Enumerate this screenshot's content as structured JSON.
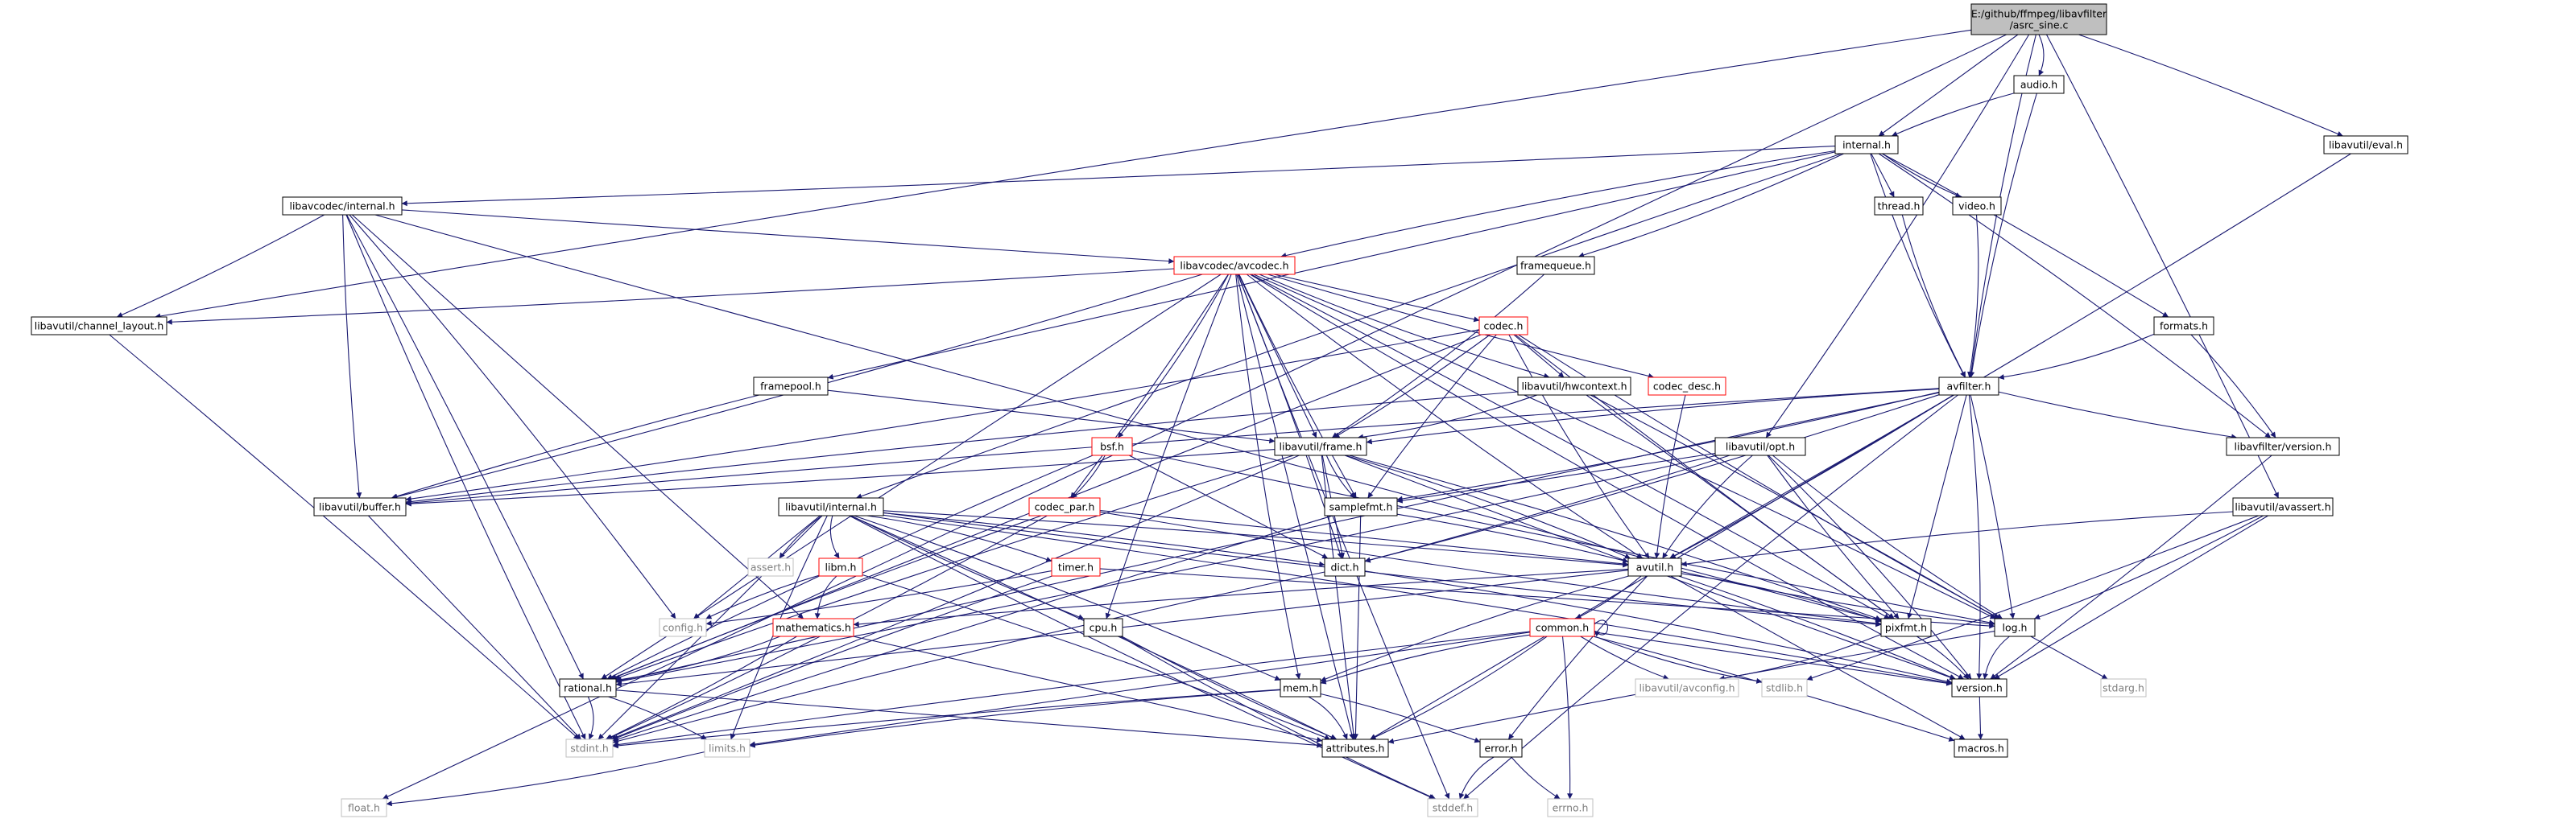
{
  "graph": {
    "title": "E:/github/ffmpeg/libavfilter/asrc_sine.c",
    "colors": {
      "edge": "#191970",
      "node_border": "#000000",
      "node_truncated_border": "#ff0000",
      "node_system_border": "#bfbfbf",
      "root_fill": "#bfbfbf",
      "node_fill": "#ffffff",
      "system_text": "#7f7f7f",
      "text": "#000000"
    },
    "nodes": [
      {
        "id": "root",
        "label": "E:/github/ffmpeg/libavfilter\n/asrc_sine.c",
        "kind": "root"
      },
      {
        "id": "audio",
        "label": "audio.h",
        "kind": "normal"
      },
      {
        "id": "eval",
        "label": "libavutil/eval.h",
        "kind": "normal"
      },
      {
        "id": "internal",
        "label": "internal.h",
        "kind": "normal"
      },
      {
        "id": "lacinternal",
        "label": "libavcodec/internal.h",
        "kind": "normal"
      },
      {
        "id": "thread",
        "label": "thread.h",
        "kind": "normal"
      },
      {
        "id": "video",
        "label": "video.h",
        "kind": "normal"
      },
      {
        "id": "avcodec",
        "label": "libavcodec/avcodec.h",
        "kind": "truncated"
      },
      {
        "id": "framequeue",
        "label": "framequeue.h",
        "kind": "normal"
      },
      {
        "id": "chlayout",
        "label": "libavutil/channel_layout.h",
        "kind": "normal"
      },
      {
        "id": "codec",
        "label": "codec.h",
        "kind": "truncated"
      },
      {
        "id": "formats",
        "label": "formats.h",
        "kind": "normal"
      },
      {
        "id": "framepool",
        "label": "framepool.h",
        "kind": "normal"
      },
      {
        "id": "hwcontext",
        "label": "libavutil/hwcontext.h",
        "kind": "normal"
      },
      {
        "id": "codecdesc",
        "label": "codec_desc.h",
        "kind": "truncated"
      },
      {
        "id": "avfilter",
        "label": "avfilter.h",
        "kind": "normal"
      },
      {
        "id": "bsf",
        "label": "bsf.h",
        "kind": "truncated"
      },
      {
        "id": "frame",
        "label": "libavutil/frame.h",
        "kind": "normal"
      },
      {
        "id": "opt",
        "label": "libavutil/opt.h",
        "kind": "normal"
      },
      {
        "id": "lfversion",
        "label": "libavfilter/version.h",
        "kind": "normal"
      },
      {
        "id": "buffer",
        "label": "libavutil/buffer.h",
        "kind": "normal"
      },
      {
        "id": "lauinternal",
        "label": "libavutil/internal.h",
        "kind": "normal"
      },
      {
        "id": "codecpar",
        "label": "codec_par.h",
        "kind": "truncated"
      },
      {
        "id": "samplefmt",
        "label": "samplefmt.h",
        "kind": "normal"
      },
      {
        "id": "avassert",
        "label": "libavutil/avassert.h",
        "kind": "normal"
      },
      {
        "id": "assert",
        "label": "assert.h",
        "kind": "system"
      },
      {
        "id": "libm",
        "label": "libm.h",
        "kind": "truncated"
      },
      {
        "id": "timer",
        "label": "timer.h",
        "kind": "truncated"
      },
      {
        "id": "dict",
        "label": "dict.h",
        "kind": "normal"
      },
      {
        "id": "avutil",
        "label": "avutil.h",
        "kind": "normal"
      },
      {
        "id": "config",
        "label": "config.h",
        "kind": "system"
      },
      {
        "id": "mathematics",
        "label": "mathematics.h",
        "kind": "truncated"
      },
      {
        "id": "cpu",
        "label": "cpu.h",
        "kind": "normal"
      },
      {
        "id": "pixfmt",
        "label": "pixfmt.h",
        "kind": "normal"
      },
      {
        "id": "log",
        "label": "log.h",
        "kind": "normal"
      },
      {
        "id": "common",
        "label": "common.h",
        "kind": "truncated"
      },
      {
        "id": "rational",
        "label": "rational.h",
        "kind": "normal"
      },
      {
        "id": "mem",
        "label": "mem.h",
        "kind": "normal"
      },
      {
        "id": "avconfig",
        "label": "libavutil/avconfig.h",
        "kind": "system"
      },
      {
        "id": "stdlib",
        "label": "stdlib.h",
        "kind": "system"
      },
      {
        "id": "version",
        "label": "version.h",
        "kind": "normal"
      },
      {
        "id": "stdarg",
        "label": "stdarg.h",
        "kind": "system"
      },
      {
        "id": "stdint",
        "label": "stdint.h",
        "kind": "system"
      },
      {
        "id": "attributes",
        "label": "attributes.h",
        "kind": "normal"
      },
      {
        "id": "limits",
        "label": "limits.h",
        "kind": "system"
      },
      {
        "id": "error",
        "label": "error.h",
        "kind": "normal"
      },
      {
        "id": "macros",
        "label": "macros.h",
        "kind": "normal"
      },
      {
        "id": "float",
        "label": "float.h",
        "kind": "system"
      },
      {
        "id": "stddef",
        "label": "stddef.h",
        "kind": "system"
      },
      {
        "id": "errno",
        "label": "errno.h",
        "kind": "system"
      }
    ],
    "edges": [
      [
        "root",
        "audio"
      ],
      [
        "root",
        "eval"
      ],
      [
        "root",
        "internal"
      ],
      [
        "root",
        "chlayout"
      ],
      [
        "root",
        "avfilter"
      ],
      [
        "root",
        "opt"
      ],
      [
        "root",
        "avassert"
      ],
      [
        "root",
        "float"
      ],
      [
        "audio",
        "internal"
      ],
      [
        "audio",
        "avfilter"
      ],
      [
        "eval",
        "avutil"
      ],
      [
        "internal",
        "lacinternal"
      ],
      [
        "internal",
        "thread"
      ],
      [
        "internal",
        "video"
      ],
      [
        "internal",
        "avcodec"
      ],
      [
        "internal",
        "framequeue"
      ],
      [
        "internal",
        "formats"
      ],
      [
        "internal",
        "framepool"
      ],
      [
        "internal",
        "lauinternal"
      ],
      [
        "internal",
        "avfilter"
      ],
      [
        "internal",
        "lfversion"
      ],
      [
        "lacinternal",
        "chlayout"
      ],
      [
        "lacinternal",
        "avcodec"
      ],
      [
        "lacinternal",
        "buffer"
      ],
      [
        "lacinternal",
        "stdint"
      ],
      [
        "lacinternal",
        "config"
      ],
      [
        "lacinternal",
        "rational"
      ],
      [
        "lacinternal",
        "mathematics"
      ],
      [
        "lacinternal",
        "pixfmt"
      ],
      [
        "thread",
        "avfilter"
      ],
      [
        "video",
        "avfilter"
      ],
      [
        "avcodec",
        "chlayout"
      ],
      [
        "avcodec",
        "codec"
      ],
      [
        "avcodec",
        "codecdesc"
      ],
      [
        "avcodec",
        "hwcontext"
      ],
      [
        "avcodec",
        "bsf"
      ],
      [
        "avcodec",
        "codecpar"
      ],
      [
        "avcodec",
        "frame"
      ],
      [
        "avcodec",
        "samplefmt"
      ],
      [
        "avcodec",
        "avutil"
      ],
      [
        "avcodec",
        "buffer"
      ],
      [
        "avcodec",
        "dict"
      ],
      [
        "avcodec",
        "attributes"
      ],
      [
        "avcodec",
        "cpu"
      ],
      [
        "avcodec",
        "mem"
      ],
      [
        "avcodec",
        "log"
      ],
      [
        "avcodec",
        "pixfmt"
      ],
      [
        "avcodec",
        "rational"
      ],
      [
        "avcodec",
        "stddef"
      ],
      [
        "avcodec",
        "version"
      ],
      [
        "framequeue",
        "frame"
      ],
      [
        "chlayout",
        "stdint"
      ],
      [
        "codec",
        "hwcontext"
      ],
      [
        "codec",
        "samplefmt"
      ],
      [
        "codec",
        "avutil"
      ],
      [
        "codec",
        "buffer"
      ],
      [
        "codec",
        "frame"
      ],
      [
        "codec",
        "rational"
      ],
      [
        "codec",
        "pixfmt"
      ],
      [
        "codec",
        "log"
      ],
      [
        "formats",
        "avfilter"
      ],
      [
        "formats",
        "lfversion"
      ],
      [
        "framepool",
        "frame"
      ],
      [
        "framepool",
        "buffer"
      ],
      [
        "hwcontext",
        "buffer"
      ],
      [
        "hwcontext",
        "frame"
      ],
      [
        "hwcontext",
        "log"
      ],
      [
        "hwcontext",
        "pixfmt"
      ],
      [
        "codecdesc",
        "avutil"
      ],
      [
        "avfilter",
        "frame"
      ],
      [
        "avfilter",
        "samplefmt"
      ],
      [
        "avfilter",
        "avutil"
      ],
      [
        "avfilter",
        "attributes"
      ],
      [
        "avfilter",
        "lfversion"
      ],
      [
        "avfilter",
        "buffer"
      ],
      [
        "avfilter",
        "dict"
      ],
      [
        "avfilter",
        "log"
      ],
      [
        "avfilter",
        "pixfmt"
      ],
      [
        "avfilter",
        "rational"
      ],
      [
        "avfilter",
        "stddef"
      ],
      [
        "avfilter",
        "version"
      ],
      [
        "bsf",
        "codecpar"
      ],
      [
        "bsf",
        "dict"
      ],
      [
        "bsf",
        "log"
      ],
      [
        "bsf",
        "rational"
      ],
      [
        "frame",
        "avutil"
      ],
      [
        "frame",
        "buffer"
      ],
      [
        "frame",
        "dict"
      ],
      [
        "frame",
        "samplefmt"
      ],
      [
        "frame",
        "rational"
      ],
      [
        "frame",
        "pixfmt"
      ],
      [
        "frame",
        "stdint"
      ],
      [
        "frame",
        "attributes"
      ],
      [
        "frame",
        "version"
      ],
      [
        "opt",
        "avutil"
      ],
      [
        "opt",
        "rational"
      ],
      [
        "opt",
        "dict"
      ],
      [
        "opt",
        "samplefmt"
      ],
      [
        "opt",
        "pixfmt"
      ],
      [
        "opt",
        "log"
      ],
      [
        "opt",
        "version"
      ],
      [
        "lfversion",
        "version"
      ],
      [
        "buffer",
        "stdint"
      ],
      [
        "lauinternal",
        "assert"
      ],
      [
        "lauinternal",
        "libm"
      ],
      [
        "lauinternal",
        "timer"
      ],
      [
        "lauinternal",
        "dict"
      ],
      [
        "lauinternal",
        "config"
      ],
      [
        "lauinternal",
        "cpu"
      ],
      [
        "lauinternal",
        "pixfmt"
      ],
      [
        "lauinternal",
        "mem"
      ],
      [
        "lauinternal",
        "attributes"
      ],
      [
        "lauinternal",
        "stdint"
      ],
      [
        "lauinternal",
        "limits"
      ],
      [
        "lauinternal",
        "stddef"
      ],
      [
        "lauinternal",
        "version"
      ],
      [
        "lauinternal",
        "avutil"
      ],
      [
        "codecpar",
        "avutil"
      ],
      [
        "codecpar",
        "rational"
      ],
      [
        "codecpar",
        "pixfmt"
      ],
      [
        "codecpar",
        "stdint"
      ],
      [
        "samplefmt",
        "avutil"
      ],
      [
        "samplefmt",
        "attributes"
      ],
      [
        "samplefmt",
        "stdint"
      ],
      [
        "avassert",
        "avutil"
      ],
      [
        "avassert",
        "log"
      ],
      [
        "avassert",
        "stdlib"
      ],
      [
        "avassert",
        "version"
      ],
      [
        "libm",
        "config"
      ],
      [
        "libm",
        "mathematics"
      ],
      [
        "libm",
        "attributes"
      ],
      [
        "timer",
        "config"
      ],
      [
        "timer",
        "log"
      ],
      [
        "timer",
        "stdint"
      ],
      [
        "dict",
        "stdint"
      ],
      [
        "dict",
        "version"
      ],
      [
        "avutil",
        "common"
      ],
      [
        "avutil",
        "rational"
      ],
      [
        "avutil",
        "mathematics"
      ],
      [
        "avutil",
        "log"
      ],
      [
        "avutil",
        "pixfmt"
      ],
      [
        "avutil",
        "version"
      ],
      [
        "avutil",
        "macros"
      ],
      [
        "avutil",
        "error"
      ],
      [
        "avutil",
        "mem"
      ],
      [
        "mathematics",
        "rational"
      ],
      [
        "mathematics",
        "stdint"
      ],
      [
        "mathematics",
        "attributes"
      ],
      [
        "cpu",
        "attributes"
      ],
      [
        "cpu",
        "stddef"
      ],
      [
        "pixfmt",
        "avconfig"
      ],
      [
        "pixfmt",
        "version"
      ],
      [
        "log",
        "stdarg"
      ],
      [
        "log",
        "attributes"
      ],
      [
        "log",
        "version"
      ],
      [
        "common",
        "common"
      ],
      [
        "common",
        "errno"
      ],
      [
        "common",
        "limits"
      ],
      [
        "common",
        "stdint"
      ],
      [
        "common",
        "stdlib"
      ],
      [
        "common",
        "attributes"
      ],
      [
        "common",
        "macros"
      ],
      [
        "common",
        "version"
      ],
      [
        "common",
        "avconfig"
      ],
      [
        "common",
        "mem"
      ],
      [
        "rational",
        "stdint"
      ],
      [
        "rational",
        "limits"
      ],
      [
        "rational",
        "attributes"
      ],
      [
        "mem",
        "stdint"
      ],
      [
        "mem",
        "limits"
      ],
      [
        "mem",
        "attributes"
      ],
      [
        "mem",
        "error"
      ],
      [
        "version",
        "macros"
      ],
      [
        "error",
        "errno"
      ],
      [
        "error",
        "stddef"
      ],
      [
        "limits",
        "float"
      ]
    ]
  }
}
